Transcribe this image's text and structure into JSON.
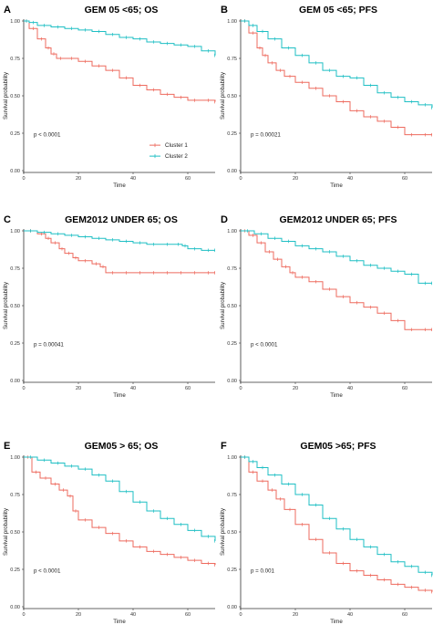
{
  "colors": {
    "cluster1": "#ee6b5f",
    "cluster2": "#1fbfc4",
    "axis": "#333333"
  },
  "chart_data": [
    {
      "type": "line",
      "letter": "A",
      "title": "GEM 05 <65; OS",
      "xlabel": "Time",
      "ylabel": "Survival probability",
      "xlim": [
        0,
        70
      ],
      "ylim": [
        0,
        1
      ],
      "x_ticks": [
        "0",
        "20",
        "40",
        "60"
      ],
      "y_ticks": [
        "0.00",
        "0.25",
        "0.50",
        "0.75",
        "1.00"
      ],
      "pvalue": "p < 0.0001",
      "legend": {
        "items": [
          "Cluster 1",
          "Cluster 2"
        ],
        "position": "center-right"
      },
      "series": [
        {
          "name": "Cluster 1",
          "x": [
            0,
            2,
            5,
            8,
            10,
            12,
            15,
            20,
            25,
            30,
            35,
            40,
            45,
            50,
            55,
            60,
            65,
            70
          ],
          "y": [
            1.0,
            0.95,
            0.88,
            0.82,
            0.78,
            0.75,
            0.75,
            0.73,
            0.7,
            0.67,
            0.62,
            0.57,
            0.54,
            0.51,
            0.49,
            0.47,
            0.47,
            0.46
          ]
        },
        {
          "name": "Cluster 2",
          "x": [
            0,
            2,
            5,
            10,
            15,
            20,
            25,
            30,
            35,
            40,
            45,
            50,
            55,
            60,
            65,
            70
          ],
          "y": [
            1.0,
            0.99,
            0.97,
            0.96,
            0.95,
            0.94,
            0.93,
            0.91,
            0.89,
            0.88,
            0.86,
            0.85,
            0.84,
            0.83,
            0.8,
            0.77
          ]
        }
      ]
    },
    {
      "type": "line",
      "letter": "B",
      "title": "GEM 05 <65; PFS",
      "xlabel": "Time",
      "ylabel": "Survival probability",
      "xlim": [
        0,
        70
      ],
      "ylim": [
        0,
        1
      ],
      "x_ticks": [
        "0",
        "20",
        "40",
        "60"
      ],
      "y_ticks": [
        "0.00",
        "0.25",
        "0.50",
        "0.75",
        "1.00"
      ],
      "pvalue": "p = 0.00021",
      "series": [
        {
          "name": "Cluster 1",
          "x": [
            0,
            3,
            6,
            8,
            10,
            13,
            16,
            20,
            25,
            30,
            35,
            40,
            45,
            50,
            55,
            60,
            65,
            70
          ],
          "y": [
            1.0,
            0.92,
            0.82,
            0.77,
            0.72,
            0.67,
            0.63,
            0.59,
            0.55,
            0.5,
            0.46,
            0.4,
            0.36,
            0.33,
            0.29,
            0.24,
            0.24,
            0.24
          ]
        },
        {
          "name": "Cluster 2",
          "x": [
            0,
            3,
            6,
            10,
            15,
            20,
            25,
            30,
            35,
            40,
            45,
            50,
            55,
            60,
            65,
            70
          ],
          "y": [
            1.0,
            0.97,
            0.93,
            0.88,
            0.82,
            0.77,
            0.72,
            0.67,
            0.63,
            0.62,
            0.57,
            0.52,
            0.49,
            0.46,
            0.44,
            0.42
          ]
        }
      ]
    },
    {
      "type": "line",
      "letter": "C",
      "title": "GEM2012 UNDER 65; OS",
      "xlabel": "Time",
      "ylabel": "Survival probability",
      "xlim": [
        0,
        70
      ],
      "ylim": [
        0,
        1
      ],
      "x_ticks": [
        "0",
        "20",
        "40",
        "60"
      ],
      "y_ticks": [
        "0.00",
        "0.25",
        "0.50",
        "0.75",
        "1.00"
      ],
      "pvalue": "p = 0.00041",
      "series": [
        {
          "name": "Cluster 1",
          "x": [
            0,
            5,
            8,
            10,
            13,
            15,
            18,
            20,
            25,
            28,
            30,
            35,
            40,
            45,
            50,
            55,
            60,
            65,
            70
          ],
          "y": [
            1.0,
            0.98,
            0.95,
            0.92,
            0.88,
            0.85,
            0.82,
            0.8,
            0.78,
            0.76,
            0.72,
            0.72,
            0.72,
            0.72,
            0.72,
            0.72,
            0.72,
            0.72,
            0.72
          ]
        },
        {
          "name": "Cluster 2",
          "x": [
            0,
            5,
            10,
            15,
            20,
            25,
            30,
            35,
            40,
            45,
            50,
            55,
            58,
            60,
            65,
            70
          ],
          "y": [
            1.0,
            0.99,
            0.98,
            0.97,
            0.96,
            0.95,
            0.94,
            0.93,
            0.92,
            0.91,
            0.91,
            0.91,
            0.9,
            0.88,
            0.87,
            0.87
          ]
        }
      ]
    },
    {
      "type": "line",
      "letter": "D",
      "title": "GEM2012 UNDER 65; PFS",
      "xlabel": "Time",
      "ylabel": "Survival probability",
      "xlim": [
        0,
        70
      ],
      "ylim": [
        0,
        1
      ],
      "x_ticks": [
        "0",
        "20",
        "40",
        "60"
      ],
      "y_ticks": [
        "0.00",
        "0.25",
        "0.50",
        "0.75",
        "1.00"
      ],
      "pvalue": "p < 0.0001",
      "series": [
        {
          "name": "Cluster 1",
          "x": [
            0,
            3,
            6,
            9,
            12,
            15,
            18,
            20,
            25,
            30,
            35,
            40,
            45,
            50,
            55,
            60,
            65,
            70
          ],
          "y": [
            1.0,
            0.97,
            0.92,
            0.86,
            0.81,
            0.76,
            0.72,
            0.69,
            0.66,
            0.61,
            0.56,
            0.52,
            0.49,
            0.45,
            0.4,
            0.34,
            0.34,
            0.34
          ]
        },
        {
          "name": "Cluster 2",
          "x": [
            0,
            5,
            10,
            15,
            20,
            25,
            30,
            35,
            40,
            45,
            50,
            55,
            60,
            65,
            70
          ],
          "y": [
            1.0,
            0.98,
            0.95,
            0.93,
            0.9,
            0.88,
            0.86,
            0.83,
            0.8,
            0.77,
            0.75,
            0.73,
            0.71,
            0.65,
            0.65
          ]
        }
      ]
    },
    {
      "type": "line",
      "letter": "E",
      "title": "GEM05 > 65; OS",
      "xlabel": "Time",
      "ylabel": "Survival probability",
      "xlim": [
        0,
        70
      ],
      "ylim": [
        0,
        1
      ],
      "x_ticks": [
        "0",
        "20",
        "40",
        "60"
      ],
      "y_ticks": [
        "0.00",
        "0.25",
        "0.50",
        "0.75",
        "1.00"
      ],
      "pvalue": "p < 0.0001",
      "series": [
        {
          "name": "Cluster 1",
          "x": [
            0,
            3,
            6,
            10,
            13,
            16,
            18,
            20,
            25,
            30,
            35,
            40,
            45,
            50,
            55,
            60,
            65,
            70
          ],
          "y": [
            1.0,
            0.9,
            0.86,
            0.82,
            0.78,
            0.74,
            0.64,
            0.58,
            0.53,
            0.49,
            0.44,
            0.4,
            0.37,
            0.35,
            0.33,
            0.31,
            0.29,
            0.28
          ]
        },
        {
          "name": "Cluster 2",
          "x": [
            0,
            5,
            10,
            15,
            20,
            25,
            30,
            35,
            40,
            45,
            50,
            55,
            60,
            65,
            70
          ],
          "y": [
            1.0,
            0.98,
            0.96,
            0.94,
            0.92,
            0.88,
            0.84,
            0.77,
            0.7,
            0.64,
            0.59,
            0.55,
            0.51,
            0.47,
            0.44
          ]
        }
      ]
    },
    {
      "type": "line",
      "letter": "F",
      "title": "GEM05 >65; PFS",
      "xlabel": "Time",
      "ylabel": "Survival probability",
      "xlim": [
        0,
        70
      ],
      "ylim": [
        0,
        1
      ],
      "x_ticks": [
        "0",
        "20",
        "40",
        "60"
      ],
      "y_ticks": [
        "0.00",
        "0.25",
        "0.50",
        "0.75",
        "1.00"
      ],
      "pvalue": "p = 0.001",
      "series": [
        {
          "name": "Cluster 1",
          "x": [
            0,
            3,
            6,
            10,
            13,
            16,
            20,
            25,
            30,
            35,
            40,
            45,
            50,
            55,
            60,
            65,
            70
          ],
          "y": [
            1.0,
            0.9,
            0.84,
            0.78,
            0.72,
            0.65,
            0.55,
            0.45,
            0.36,
            0.29,
            0.24,
            0.21,
            0.18,
            0.15,
            0.13,
            0.11,
            0.1
          ]
        },
        {
          "name": "Cluster 2",
          "x": [
            0,
            3,
            6,
            10,
            15,
            20,
            25,
            30,
            35,
            40,
            45,
            50,
            55,
            60,
            65,
            70
          ],
          "y": [
            1.0,
            0.97,
            0.93,
            0.88,
            0.82,
            0.75,
            0.68,
            0.59,
            0.52,
            0.45,
            0.4,
            0.35,
            0.3,
            0.27,
            0.23,
            0.21
          ]
        }
      ]
    }
  ]
}
